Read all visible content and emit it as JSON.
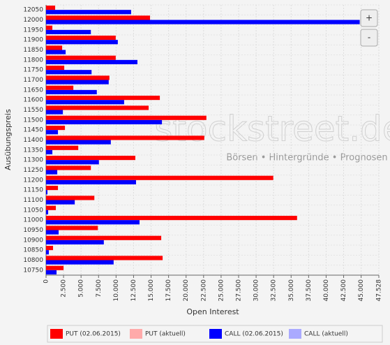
{
  "chart_data": {
    "type": "hbar",
    "y_label": "Ausübungspreis",
    "x_label": "Open Interest",
    "watermark": "stockstreet.de",
    "watermark_tagline": "Börsen • Hintergründe • Prognosen",
    "buttons": [
      "+",
      "-"
    ],
    "categories": [
      "12050",
      "12000",
      "11950",
      "11900",
      "11850",
      "11800",
      "11750",
      "11700",
      "11650",
      "11600",
      "11550",
      "11500",
      "11450",
      "11400",
      "11350",
      "11300",
      "11250",
      "11200",
      "11150",
      "11100",
      "11050",
      "11000",
      "10950",
      "10900",
      "10850",
      "10800",
      "10750"
    ],
    "series": [
      {
        "name": "PUT (02.06.2015)",
        "color": "#ff0000",
        "values": [
          1300,
          14850,
          900,
          9950,
          2300,
          9950,
          2600,
          9050,
          3900,
          16250,
          14650,
          22900,
          2700,
          22600,
          4600,
          12750,
          6400,
          32450,
          1700,
          6900,
          1400,
          35850,
          7400,
          16450,
          1000,
          16650,
          2500
        ]
      },
      {
        "name": "PUT (aktuell)",
        "color": "#ffaaaa"
      },
      {
        "name": "CALL (02.06.2015)",
        "color": "#0000ff",
        "values": [
          12150,
          44800,
          6400,
          10250,
          2800,
          13050,
          6500,
          8950,
          7250,
          11150,
          2400,
          16550,
          1700,
          9250,
          900,
          7550,
          1600,
          12850,
          200,
          4100,
          300,
          13350,
          1800,
          8250,
          400,
          9650,
          1500
        ]
      },
      {
        "name": "CALL (aktuell)",
        "color": "#aaaaff"
      }
    ],
    "xlim": [
      0,
      47528
    ],
    "xticks": [
      0,
      {
        "value": 2500,
        "label": "2.500"
      },
      {
        "value": 5000,
        "label": "5.000"
      },
      {
        "value": 7500,
        "label": "7.500"
      },
      {
        "value": 10000,
        "label": "10.000"
      },
      {
        "value": 12500,
        "label": "12.500"
      },
      {
        "value": 15000,
        "label": "15.000"
      },
      {
        "value": 17500,
        "label": "17.500"
      },
      {
        "value": 20000,
        "label": "20.000"
      },
      {
        "value": 22500,
        "label": "22.500"
      },
      {
        "value": 25000,
        "label": "25.000"
      },
      {
        "value": 27500,
        "label": "27.500"
      },
      {
        "value": 30000,
        "label": "30.000"
      },
      {
        "value": 32500,
        "label": "32.500"
      },
      {
        "value": 35000,
        "label": "35.000"
      },
      {
        "value": 37500,
        "label": "37.500"
      },
      {
        "value": 40000,
        "label": "40.000"
      },
      {
        "value": 42500,
        "label": "42.500"
      },
      {
        "value": 45000,
        "label": "45.000"
      },
      {
        "value": 47528,
        "label": "47.528"
      }
    ],
    "grid": true
  }
}
